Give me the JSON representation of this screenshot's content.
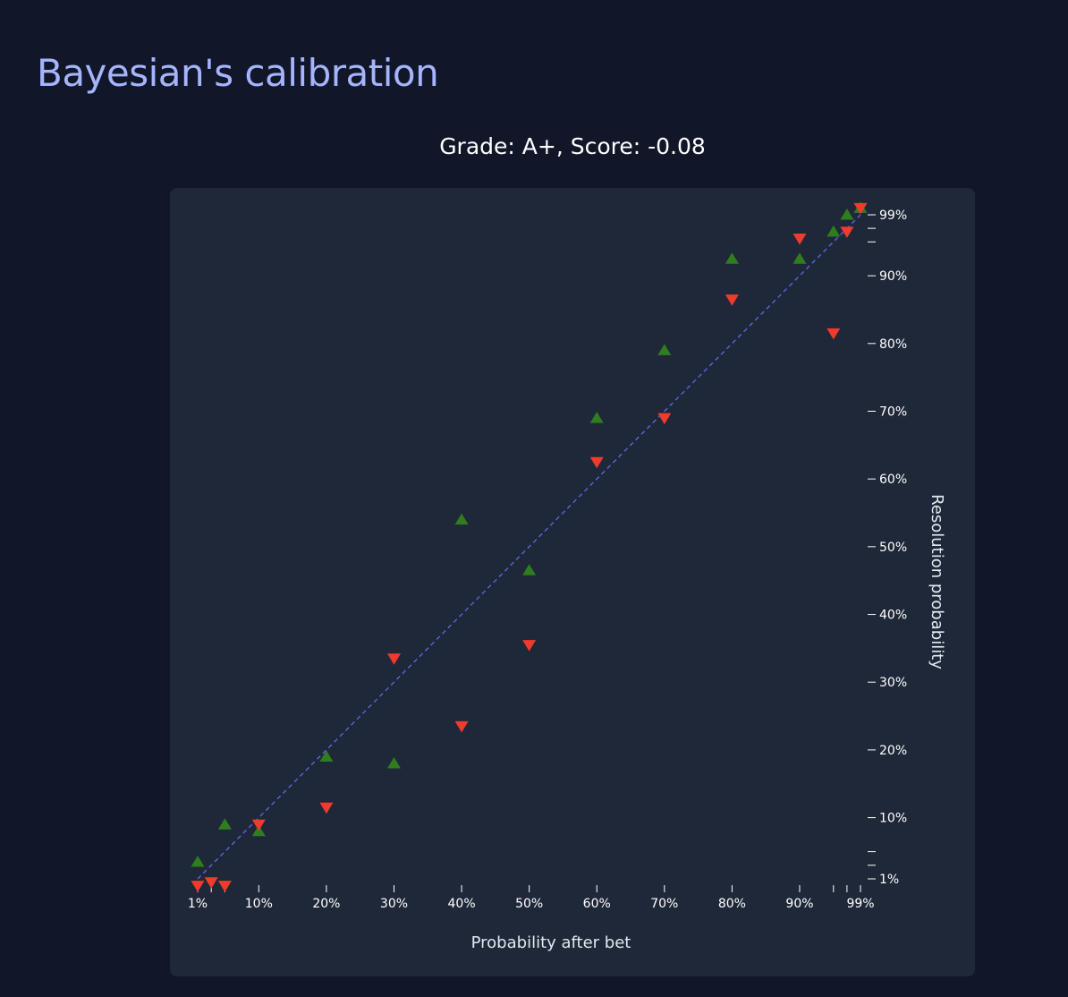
{
  "page": {
    "title": "Bayesian's calibration"
  },
  "chart_data": {
    "type": "scatter",
    "title": "Grade: A+, Score: -0.08",
    "xlabel": "Probability after bet",
    "ylabel": "Resolution probability",
    "xlim": [
      0.01,
      0.99
    ],
    "ylim": [
      0.01,
      0.99
    ],
    "x_ticks": [
      {
        "value": 0.01,
        "label": "1%"
      },
      {
        "value": 0.03,
        "label": ""
      },
      {
        "value": 0.05,
        "label": ""
      },
      {
        "value": 0.1,
        "label": "10%"
      },
      {
        "value": 0.2,
        "label": "20%"
      },
      {
        "value": 0.3,
        "label": "30%"
      },
      {
        "value": 0.4,
        "label": "40%"
      },
      {
        "value": 0.5,
        "label": "50%"
      },
      {
        "value": 0.6,
        "label": "60%"
      },
      {
        "value": 0.7,
        "label": "70%"
      },
      {
        "value": 0.8,
        "label": "80%"
      },
      {
        "value": 0.9,
        "label": "90%"
      },
      {
        "value": 0.95,
        "label": ""
      },
      {
        "value": 0.97,
        "label": ""
      },
      {
        "value": 0.99,
        "label": "99%"
      }
    ],
    "y_ticks": [
      {
        "value": 0.01,
        "label": "1%"
      },
      {
        "value": 0.03,
        "label": ""
      },
      {
        "value": 0.05,
        "label": ""
      },
      {
        "value": 0.1,
        "label": "10%"
      },
      {
        "value": 0.2,
        "label": "20%"
      },
      {
        "value": 0.3,
        "label": "30%"
      },
      {
        "value": 0.4,
        "label": "40%"
      },
      {
        "value": 0.5,
        "label": "50%"
      },
      {
        "value": 0.6,
        "label": "60%"
      },
      {
        "value": 0.7,
        "label": "70%"
      },
      {
        "value": 0.8,
        "label": "80%"
      },
      {
        "value": 0.9,
        "label": "90%"
      },
      {
        "value": 0.95,
        "label": ""
      },
      {
        "value": 0.97,
        "label": ""
      },
      {
        "value": 0.99,
        "label": "99%"
      }
    ],
    "diagonal": {
      "from": [
        0.01,
        0.01
      ],
      "to": [
        0.99,
        0.99
      ],
      "color": "#6366f1",
      "style": "dashed"
    },
    "series": [
      {
        "marker": "triangle-up",
        "color": "#2f7d1f",
        "points": [
          {
            "x": 0.01,
            "y": 0.035
          },
          {
            "x": 0.05,
            "y": 0.09
          },
          {
            "x": 0.1,
            "y": 0.08
          },
          {
            "x": 0.2,
            "y": 0.19
          },
          {
            "x": 0.3,
            "y": 0.18
          },
          {
            "x": 0.4,
            "y": 0.54
          },
          {
            "x": 0.5,
            "y": 0.465
          },
          {
            "x": 0.6,
            "y": 0.69
          },
          {
            "x": 0.7,
            "y": 0.79
          },
          {
            "x": 0.8,
            "y": 0.925
          },
          {
            "x": 0.9,
            "y": 0.925
          },
          {
            "x": 0.95,
            "y": 0.965
          },
          {
            "x": 0.97,
            "y": 0.99
          },
          {
            "x": 0.99,
            "y": 1.0
          }
        ]
      },
      {
        "marker": "triangle-down",
        "color": "#ef3b2c",
        "points": [
          {
            "x": 0.01,
            "y": 0.0
          },
          {
            "x": 0.03,
            "y": 0.005
          },
          {
            "x": 0.05,
            "y": 0.0
          },
          {
            "x": 0.1,
            "y": 0.09
          },
          {
            "x": 0.2,
            "y": 0.115
          },
          {
            "x": 0.3,
            "y": 0.335
          },
          {
            "x": 0.4,
            "y": 0.235
          },
          {
            "x": 0.5,
            "y": 0.355
          },
          {
            "x": 0.6,
            "y": 0.625
          },
          {
            "x": 0.7,
            "y": 0.69
          },
          {
            "x": 0.8,
            "y": 0.865
          },
          {
            "x": 0.9,
            "y": 0.955
          },
          {
            "x": 0.95,
            "y": 0.815
          },
          {
            "x": 0.97,
            "y": 0.965
          },
          {
            "x": 0.99,
            "y": 1.0
          }
        ]
      }
    ]
  }
}
